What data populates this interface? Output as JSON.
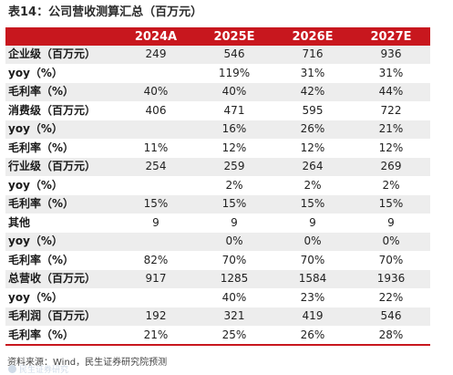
{
  "title": "表14：公司营收测算汇总（百万元）",
  "columns": [
    "",
    "2024A",
    "2025E",
    "2026E",
    "2027E"
  ],
  "rows": [
    {
      "label": "企业级（百万元）",
      "values": [
        "249",
        "546",
        "716",
        "936"
      ]
    },
    {
      "label": "yoy（%）",
      "values": [
        "",
        "119%",
        "31%",
        "31%"
      ]
    },
    {
      "label": "毛利率（%）",
      "values": [
        "40%",
        "40%",
        "42%",
        "44%"
      ]
    },
    {
      "label": "消费级（百万元）",
      "values": [
        "406",
        "471",
        "595",
        "722"
      ]
    },
    {
      "label": "yoy（%）",
      "values": [
        "",
        "16%",
        "26%",
        "21%"
      ]
    },
    {
      "label": "毛利率（%）",
      "values": [
        "11%",
        "12%",
        "12%",
        "12%"
      ]
    },
    {
      "label": "行业级（百万元）",
      "values": [
        "254",
        "259",
        "264",
        "269"
      ]
    },
    {
      "label": "yoy（%）",
      "values": [
        "",
        "2%",
        "2%",
        "2%"
      ]
    },
    {
      "label": "毛利率（%）",
      "values": [
        "15%",
        "15%",
        "15%",
        "15%"
      ]
    },
    {
      "label": "其他",
      "values": [
        "9",
        "9",
        "9",
        "9"
      ]
    },
    {
      "label": "yoy（%）",
      "values": [
        "",
        "0%",
        "0%",
        "0%"
      ]
    },
    {
      "label": "毛利率（%）",
      "values": [
        "82%",
        "70%",
        "70%",
        "70%"
      ]
    },
    {
      "label": "总营收（百万元）",
      "values": [
        "917",
        "1285",
        "1584",
        "1936"
      ]
    },
    {
      "label": "yoy（%）",
      "values": [
        "",
        "40%",
        "23%",
        "22%"
      ]
    },
    {
      "label": "毛利润（百万元）",
      "values": [
        "192",
        "321",
        "419",
        "546"
      ]
    },
    {
      "label": "毛利率（%）",
      "values": [
        "21%",
        "25%",
        "26%",
        "28%"
      ]
    }
  ],
  "source": "资料来源：Wind，民生证券研究院预测",
  "watermark": "民生证券研究",
  "colors": {
    "header_bg": "#c8171e",
    "header_text": "#ffffff",
    "stripe": "#ededed"
  }
}
